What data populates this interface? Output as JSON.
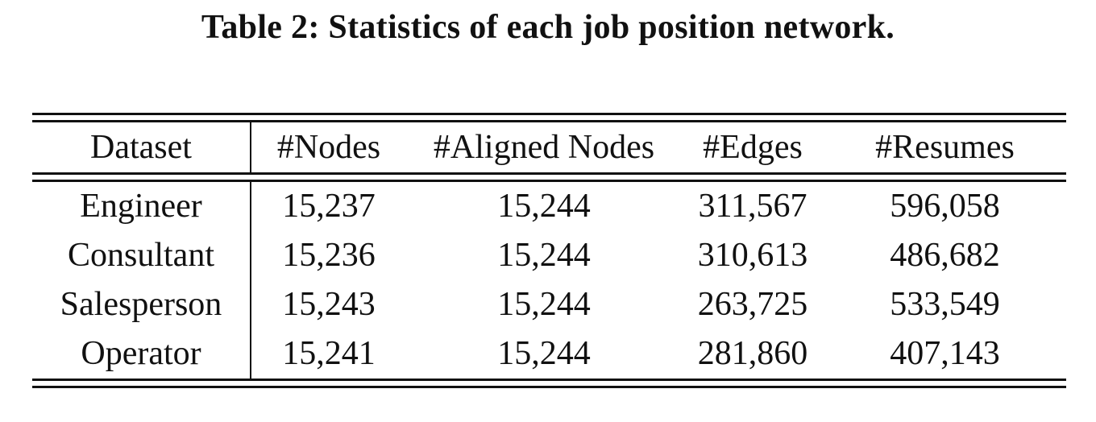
{
  "caption": "Table 2: Statistics of each job position network.",
  "table": {
    "headers": [
      "Dataset",
      "#Nodes",
      "#Aligned Nodes",
      "#Edges",
      "#Resumes"
    ],
    "rows": [
      [
        "Engineer",
        "15,237",
        "15,244",
        "311,567",
        "596,058"
      ],
      [
        "Consultant",
        "15,236",
        "15,244",
        "310,613",
        "486,682"
      ],
      [
        "Salesperson",
        "15,243",
        "15,244",
        "263,725",
        "533,549"
      ],
      [
        "Operator",
        "15,241",
        "15,244",
        "281,860",
        "407,143"
      ]
    ]
  }
}
